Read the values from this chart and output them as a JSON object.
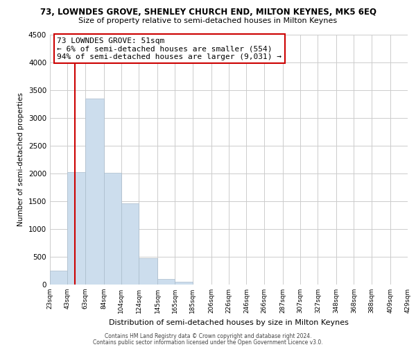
{
  "title_line1": "73, LOWNDES GROVE, SHENLEY CHURCH END, MILTON KEYNES, MK5 6EQ",
  "title_line2": "Size of property relative to semi-detached houses in Milton Keynes",
  "xlabel": "Distribution of semi-detached houses by size in Milton Keynes",
  "ylabel": "Number of semi-detached properties",
  "footer_line1": "Contains HM Land Registry data © Crown copyright and database right 2024.",
  "footer_line2": "Contains public sector information licensed under the Open Government Licence v3.0.",
  "annotation_title": "73 LOWNDES GROVE: 51sqm",
  "annotation_line2": "← 6% of semi-detached houses are smaller (554)",
  "annotation_line3": "94% of semi-detached houses are larger (9,031) →",
  "bar_edges": [
    23,
    43,
    63,
    84,
    104,
    124,
    145,
    165,
    185,
    206,
    226,
    246,
    266,
    287,
    307,
    327,
    348,
    368,
    388,
    409,
    429
  ],
  "bar_heights": [
    250,
    2030,
    3350,
    2010,
    1460,
    480,
    95,
    50,
    0,
    0,
    0,
    0,
    0,
    0,
    0,
    0,
    0,
    0,
    0,
    0
  ],
  "bar_color": "#ccdded",
  "bar_edgecolor": "#aabccc",
  "vline_x": 51,
  "vline_color": "#cc0000",
  "ylim": [
    0,
    4500
  ],
  "yticks": [
    0,
    500,
    1000,
    1500,
    2000,
    2500,
    3000,
    3500,
    4000,
    4500
  ],
  "tick_labels": [
    "23sqm",
    "43sqm",
    "63sqm",
    "84sqm",
    "104sqm",
    "124sqm",
    "145sqm",
    "165sqm",
    "185sqm",
    "206sqm",
    "226sqm",
    "246sqm",
    "266sqm",
    "287sqm",
    "307sqm",
    "327sqm",
    "348sqm",
    "368sqm",
    "388sqm",
    "409sqm",
    "429sqm"
  ],
  "annotation_box_color": "#ffffff",
  "annotation_box_edgecolor": "#cc0000",
  "background_color": "#ffffff",
  "grid_color": "#cccccc"
}
